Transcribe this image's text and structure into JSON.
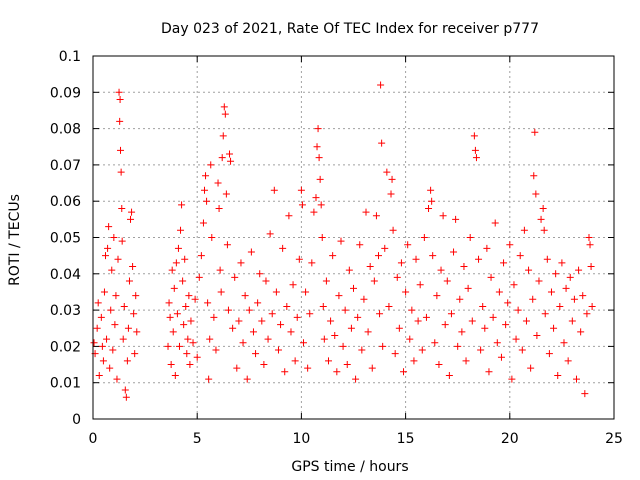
{
  "chart_data": {
    "type": "scatter",
    "title": "Day 023 of 2021, Rate Of TEC Index for receiver p777",
    "xlabel": "GPS time / hours",
    "ylabel": "ROTI / TECUs",
    "xlim": [
      0,
      25
    ],
    "ylim": [
      0,
      0.1
    ],
    "x_ticks": [
      "0",
      "5",
      "10",
      "15",
      "20",
      "25"
    ],
    "y_ticks": [
      "0",
      "0.01",
      "0.02",
      "0.03",
      "0.04",
      "0.05",
      "0.06",
      "0.07",
      "0.08",
      "0.09",
      "0.1"
    ],
    "grid": true,
    "marker": "plus",
    "color": "#ff0000",
    "series": [
      {
        "points": [
          [
            0.05,
            0.021
          ],
          [
            0.1,
            0.018
          ],
          [
            0.2,
            0.025
          ],
          [
            0.25,
            0.032
          ],
          [
            0.3,
            0.012
          ],
          [
            0.4,
            0.028
          ],
          [
            0.45,
            0.02
          ],
          [
            0.5,
            0.016
          ],
          [
            0.55,
            0.035
          ],
          [
            0.6,
            0.045
          ],
          [
            0.65,
            0.022
          ],
          [
            0.7,
            0.047
          ],
          [
            0.75,
            0.053
          ],
          [
            0.8,
            0.014
          ],
          [
            0.85,
            0.03
          ],
          [
            0.9,
            0.041
          ],
          [
            0.95,
            0.019
          ],
          [
            1.0,
            0.05
          ],
          [
            1.05,
            0.026
          ],
          [
            1.1,
            0.034
          ],
          [
            1.15,
            0.011
          ],
          [
            1.2,
            0.044
          ],
          [
            1.25,
            0.09
          ],
          [
            1.28,
            0.082
          ],
          [
            1.3,
            0.088
          ],
          [
            1.32,
            0.074
          ],
          [
            1.35,
            0.068
          ],
          [
            1.38,
            0.058
          ],
          [
            1.4,
            0.049
          ],
          [
            1.45,
            0.022
          ],
          [
            1.5,
            0.031
          ],
          [
            1.55,
            0.008
          ],
          [
            1.6,
            0.006
          ],
          [
            1.65,
            0.016
          ],
          [
            1.7,
            0.025
          ],
          [
            1.75,
            0.038
          ],
          [
            1.8,
            0.055
          ],
          [
            1.85,
            0.057
          ],
          [
            1.9,
            0.042
          ],
          [
            1.95,
            0.029
          ],
          [
            2.0,
            0.018
          ],
          [
            2.05,
            0.034
          ],
          [
            2.1,
            0.024
          ],
          [
            3.6,
            0.02
          ],
          [
            3.65,
            0.032
          ],
          [
            3.7,
            0.028
          ],
          [
            3.75,
            0.015
          ],
          [
            3.8,
            0.041
          ],
          [
            3.85,
            0.024
          ],
          [
            3.9,
            0.036
          ],
          [
            3.95,
            0.012
          ],
          [
            4.0,
            0.043
          ],
          [
            4.05,
            0.029
          ],
          [
            4.1,
            0.047
          ],
          [
            4.15,
            0.02
          ],
          [
            4.2,
            0.052
          ],
          [
            4.25,
            0.059
          ],
          [
            4.3,
            0.038
          ],
          [
            4.35,
            0.026
          ],
          [
            4.4,
            0.044
          ],
          [
            4.45,
            0.031
          ],
          [
            4.5,
            0.018
          ],
          [
            4.55,
            0.022
          ],
          [
            4.6,
            0.034
          ],
          [
            4.65,
            0.015
          ],
          [
            4.7,
            0.027
          ],
          [
            4.8,
            0.021
          ],
          [
            4.9,
            0.033
          ],
          [
            5.0,
            0.017
          ],
          [
            5.1,
            0.039
          ],
          [
            5.2,
            0.045
          ],
          [
            5.3,
            0.054
          ],
          [
            5.35,
            0.063
          ],
          [
            5.4,
            0.067
          ],
          [
            5.45,
            0.06
          ],
          [
            5.5,
            0.032
          ],
          [
            5.55,
            0.011
          ],
          [
            5.6,
            0.022
          ],
          [
            5.65,
            0.07
          ],
          [
            5.7,
            0.05
          ],
          [
            5.8,
            0.028
          ],
          [
            5.9,
            0.019
          ],
          [
            6.0,
            0.065
          ],
          [
            6.05,
            0.058
          ],
          [
            6.1,
            0.041
          ],
          [
            6.15,
            0.035
          ],
          [
            6.2,
            0.072
          ],
          [
            6.25,
            0.078
          ],
          [
            6.3,
            0.086
          ],
          [
            6.35,
            0.084
          ],
          [
            6.4,
            0.062
          ],
          [
            6.45,
            0.048
          ],
          [
            6.5,
            0.03
          ],
          [
            6.55,
            0.073
          ],
          [
            6.6,
            0.071
          ],
          [
            6.7,
            0.025
          ],
          [
            6.8,
            0.039
          ],
          [
            6.9,
            0.014
          ],
          [
            7.0,
            0.027
          ],
          [
            7.1,
            0.043
          ],
          [
            7.2,
            0.021
          ],
          [
            7.3,
            0.034
          ],
          [
            7.4,
            0.011
          ],
          [
            7.5,
            0.03
          ],
          [
            7.6,
            0.046
          ],
          [
            7.7,
            0.024
          ],
          [
            7.8,
            0.018
          ],
          [
            7.9,
            0.032
          ],
          [
            8.0,
            0.04
          ],
          [
            8.1,
            0.027
          ],
          [
            8.2,
            0.015
          ],
          [
            8.3,
            0.038
          ],
          [
            8.4,
            0.022
          ],
          [
            8.5,
            0.051
          ],
          [
            8.6,
            0.029
          ],
          [
            8.7,
            0.063
          ],
          [
            8.8,
            0.035
          ],
          [
            8.9,
            0.019
          ],
          [
            9.0,
            0.026
          ],
          [
            9.1,
            0.047
          ],
          [
            9.2,
            0.013
          ],
          [
            9.3,
            0.031
          ],
          [
            9.4,
            0.056
          ],
          [
            9.5,
            0.024
          ],
          [
            9.6,
            0.037
          ],
          [
            9.7,
            0.016
          ],
          [
            9.8,
            0.028
          ],
          [
            9.9,
            0.044
          ],
          [
            10.0,
            0.063
          ],
          [
            10.05,
            0.059
          ],
          [
            10.1,
            0.021
          ],
          [
            10.2,
            0.035
          ],
          [
            10.3,
            0.014
          ],
          [
            10.4,
            0.029
          ],
          [
            10.5,
            0.043
          ],
          [
            10.6,
            0.057
          ],
          [
            10.7,
            0.061
          ],
          [
            10.75,
            0.075
          ],
          [
            10.8,
            0.08
          ],
          [
            10.85,
            0.072
          ],
          [
            10.9,
            0.066
          ],
          [
            10.95,
            0.059
          ],
          [
            11.0,
            0.05
          ],
          [
            11.05,
            0.031
          ],
          [
            11.1,
            0.022
          ],
          [
            11.2,
            0.038
          ],
          [
            11.3,
            0.016
          ],
          [
            11.4,
            0.027
          ],
          [
            11.5,
            0.045
          ],
          [
            11.6,
            0.023
          ],
          [
            11.7,
            0.013
          ],
          [
            11.8,
            0.034
          ],
          [
            11.9,
            0.049
          ],
          [
            12.0,
            0.02
          ],
          [
            12.1,
            0.03
          ],
          [
            12.2,
            0.015
          ],
          [
            12.3,
            0.041
          ],
          [
            12.4,
            0.025
          ],
          [
            12.5,
            0.036
          ],
          [
            12.6,
            0.011
          ],
          [
            12.7,
            0.028
          ],
          [
            12.8,
            0.048
          ],
          [
            12.9,
            0.019
          ],
          [
            13.0,
            0.033
          ],
          [
            13.1,
            0.057
          ],
          [
            13.2,
            0.024
          ],
          [
            13.3,
            0.042
          ],
          [
            13.4,
            0.014
          ],
          [
            13.5,
            0.038
          ],
          [
            13.6,
            0.056
          ],
          [
            13.7,
            0.045
          ],
          [
            13.75,
            0.029
          ],
          [
            13.8,
            0.092
          ],
          [
            13.85,
            0.076
          ],
          [
            13.9,
            0.02
          ],
          [
            14.0,
            0.047
          ],
          [
            14.1,
            0.068
          ],
          [
            14.2,
            0.031
          ],
          [
            14.3,
            0.062
          ],
          [
            14.35,
            0.066
          ],
          [
            14.4,
            0.052
          ],
          [
            14.5,
            0.018
          ],
          [
            14.6,
            0.039
          ],
          [
            14.7,
            0.025
          ],
          [
            14.8,
            0.043
          ],
          [
            14.9,
            0.013
          ],
          [
            15.0,
            0.035
          ],
          [
            15.1,
            0.048
          ],
          [
            15.2,
            0.022
          ],
          [
            15.3,
            0.03
          ],
          [
            15.4,
            0.016
          ],
          [
            15.5,
            0.044
          ],
          [
            15.6,
            0.027
          ],
          [
            15.7,
            0.037
          ],
          [
            15.8,
            0.019
          ],
          [
            15.9,
            0.05
          ],
          [
            16.0,
            0.028
          ],
          [
            16.1,
            0.058
          ],
          [
            16.2,
            0.063
          ],
          [
            16.25,
            0.06
          ],
          [
            16.3,
            0.045
          ],
          [
            16.4,
            0.021
          ],
          [
            16.5,
            0.034
          ],
          [
            16.6,
            0.015
          ],
          [
            16.7,
            0.041
          ],
          [
            16.8,
            0.056
          ],
          [
            16.9,
            0.026
          ],
          [
            17.0,
            0.038
          ],
          [
            17.1,
            0.012
          ],
          [
            17.2,
            0.029
          ],
          [
            17.3,
            0.046
          ],
          [
            17.4,
            0.055
          ],
          [
            17.5,
            0.02
          ],
          [
            17.6,
            0.033
          ],
          [
            17.7,
            0.024
          ],
          [
            17.8,
            0.042
          ],
          [
            17.9,
            0.016
          ],
          [
            18.0,
            0.036
          ],
          [
            18.1,
            0.05
          ],
          [
            18.2,
            0.027
          ],
          [
            18.3,
            0.078
          ],
          [
            18.35,
            0.074
          ],
          [
            18.4,
            0.072
          ],
          [
            18.5,
            0.044
          ],
          [
            18.6,
            0.019
          ],
          [
            18.7,
            0.031
          ],
          [
            18.8,
            0.025
          ],
          [
            18.9,
            0.047
          ],
          [
            19.0,
            0.013
          ],
          [
            19.1,
            0.039
          ],
          [
            19.2,
            0.028
          ],
          [
            19.3,
            0.054
          ],
          [
            19.4,
            0.021
          ],
          [
            19.5,
            0.035
          ],
          [
            19.6,
            0.017
          ],
          [
            19.7,
            0.043
          ],
          [
            19.8,
            0.026
          ],
          [
            19.9,
            0.032
          ],
          [
            20.0,
            0.048
          ],
          [
            20.1,
            0.011
          ],
          [
            20.2,
            0.037
          ],
          [
            20.3,
            0.022
          ],
          [
            20.4,
            0.03
          ],
          [
            20.5,
            0.045
          ],
          [
            20.6,
            0.019
          ],
          [
            20.7,
            0.052
          ],
          [
            20.8,
            0.027
          ],
          [
            20.9,
            0.041
          ],
          [
            21.0,
            0.014
          ],
          [
            21.1,
            0.033
          ],
          [
            21.15,
            0.067
          ],
          [
            21.2,
            0.079
          ],
          [
            21.25,
            0.062
          ],
          [
            21.3,
            0.023
          ],
          [
            21.4,
            0.038
          ],
          [
            21.5,
            0.055
          ],
          [
            21.6,
            0.058
          ],
          [
            21.65,
            0.052
          ],
          [
            21.7,
            0.029
          ],
          [
            21.8,
            0.044
          ],
          [
            21.9,
            0.018
          ],
          [
            22.0,
            0.035
          ],
          [
            22.1,
            0.025
          ],
          [
            22.2,
            0.04
          ],
          [
            22.3,
            0.012
          ],
          [
            22.4,
            0.031
          ],
          [
            22.5,
            0.043
          ],
          [
            22.6,
            0.021
          ],
          [
            22.7,
            0.036
          ],
          [
            22.8,
            0.016
          ],
          [
            22.9,
            0.039
          ],
          [
            23.0,
            0.027
          ],
          [
            23.1,
            0.033
          ],
          [
            23.2,
            0.011
          ],
          [
            23.3,
            0.041
          ],
          [
            23.4,
            0.024
          ],
          [
            23.5,
            0.034
          ],
          [
            23.6,
            0.007
          ],
          [
            23.7,
            0.029
          ],
          [
            23.8,
            0.05
          ],
          [
            23.85,
            0.048
          ],
          [
            23.9,
            0.042
          ],
          [
            23.95,
            0.031
          ]
        ]
      }
    ]
  }
}
